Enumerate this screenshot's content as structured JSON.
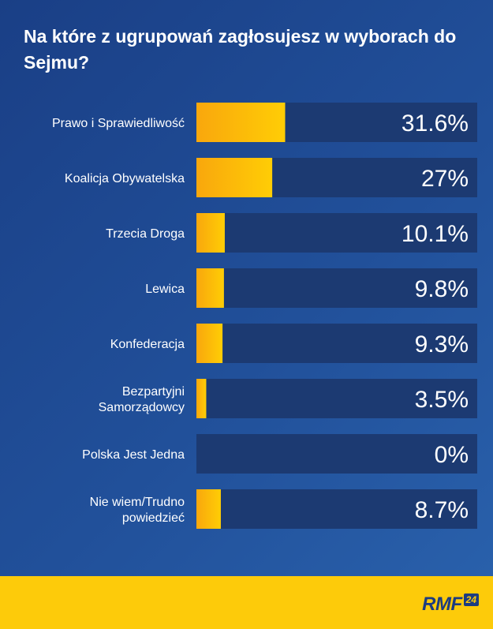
{
  "chart_data": {
    "type": "bar",
    "orientation": "horizontal",
    "title": "Na które z ugrupowań zagłosujesz w wyborach do Sejmu?",
    "categories": [
      "Prawo i Sprawiedliwość",
      "Koalicja Obywatelska",
      "Trzecia Droga",
      "Lewica",
      "Konfederacja",
      "Bezpartyjni Samorządowcy",
      "Polska Jest Jedna",
      "Nie wiem/Trudno powiedzieć"
    ],
    "values": [
      31.6,
      27,
      10.1,
      9.8,
      9.3,
      3.5,
      0,
      8.7
    ],
    "value_labels": [
      "31.6%",
      "27%",
      "10.1%",
      "9.8%",
      "9.3%",
      "3.5%",
      "0%",
      "8.7%"
    ],
    "unit": "%",
    "xlim": [
      0,
      100
    ],
    "colors": {
      "bar_fill_start": "#f9a70d",
      "bar_fill_end": "#ffcd05",
      "track": "#1c3a72",
      "text": "#ffffff"
    }
  },
  "footer": {
    "logo_text": "RMF",
    "logo_badge": "24",
    "background": "#fdcb0a"
  }
}
